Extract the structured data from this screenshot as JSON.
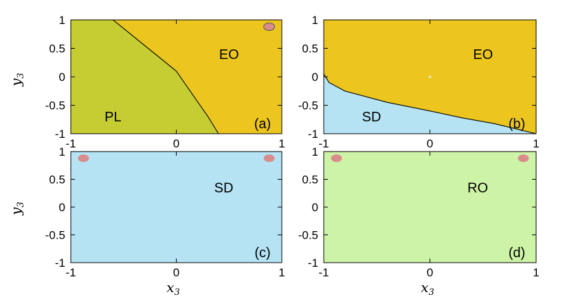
{
  "colors": {
    "PL": "#c6cd33",
    "EO": "#ecc61f",
    "SD": "#b5e3f4",
    "RO": "#cdf3a6",
    "marker": "#d98c8c",
    "boundary": "#000000"
  },
  "chart_data": [
    {
      "type": "region-map",
      "panel_label": "(a)",
      "xlim": [
        -1,
        1
      ],
      "ylim": [
        -1,
        1
      ],
      "xticks": [
        -1,
        0,
        1
      ],
      "yticks": [
        1,
        0.5,
        0,
        -0.5,
        -1
      ],
      "regions": [
        {
          "name": "PL",
          "label_at": [
            -0.6,
            -0.7
          ],
          "fill": "PL",
          "polygon": [
            [
              -1,
              1
            ],
            [
              -0.6,
              1
            ],
            [
              -0.5,
              0.85
            ],
            [
              -0.3,
              0.55
            ],
            [
              0,
              0.1
            ],
            [
              0.15,
              -0.3
            ],
            [
              0.3,
              -0.7
            ],
            [
              0.4,
              -1
            ],
            [
              -1,
              -1
            ]
          ]
        },
        {
          "name": "EO",
          "label_at": [
            0.5,
            0.4
          ],
          "fill": "EO",
          "polygon": [
            [
              -0.6,
              1
            ],
            [
              1,
              1
            ],
            [
              1,
              -1
            ],
            [
              0.4,
              -1
            ],
            [
              0.3,
              -0.7
            ],
            [
              0.15,
              -0.3
            ],
            [
              0,
              0.1
            ],
            [
              -0.3,
              0.55
            ],
            [
              -0.5,
              0.85
            ]
          ]
        }
      ],
      "boundary": [
        [
          -0.6,
          1
        ],
        [
          -0.5,
          0.85
        ],
        [
          -0.3,
          0.55
        ],
        [
          0,
          0.1
        ],
        [
          0.15,
          -0.3
        ],
        [
          0.3,
          -0.7
        ],
        [
          0.4,
          -1
        ]
      ],
      "markers": [
        {
          "x": 0.88,
          "y": 0.88,
          "outlined": true
        }
      ]
    },
    {
      "type": "region-map",
      "panel_label": "(b)",
      "xlim": [
        -1,
        1
      ],
      "ylim": [
        -1,
        1
      ],
      "xticks": [
        -1,
        0,
        1
      ],
      "yticks": [
        1,
        0.5,
        0,
        -0.5,
        -1
      ],
      "regions": [
        {
          "name": "EO",
          "label_at": [
            0.5,
            0.4
          ],
          "fill": "EO",
          "polygon": [
            [
              -1,
              1
            ],
            [
              1,
              1
            ],
            [
              1,
              -1
            ],
            [
              0.6,
              -0.82
            ],
            [
              0.3,
              -0.72
            ],
            [
              0,
              -0.6
            ],
            [
              -0.4,
              -0.45
            ],
            [
              -0.8,
              -0.25
            ],
            [
              -0.95,
              -0.1
            ],
            [
              -1,
              0.05
            ]
          ]
        },
        {
          "name": "SD",
          "label_at": [
            -0.55,
            -0.7
          ],
          "fill": "SD",
          "polygon": [
            [
              -1,
              0.05
            ],
            [
              -0.95,
              -0.1
            ],
            [
              -0.8,
              -0.25
            ],
            [
              -0.4,
              -0.45
            ],
            [
              0,
              -0.6
            ],
            [
              0.3,
              -0.72
            ],
            [
              0.6,
              -0.82
            ],
            [
              1,
              -1
            ],
            [
              -1,
              -1
            ]
          ]
        }
      ],
      "boundary": [
        [
          -1,
          0.05
        ],
        [
          -0.95,
          -0.1
        ],
        [
          -0.8,
          -0.25
        ],
        [
          -0.4,
          -0.45
        ],
        [
          0,
          -0.6
        ],
        [
          0.3,
          -0.72
        ],
        [
          0.6,
          -0.82
        ],
        [
          1,
          -1
        ]
      ],
      "markers": [
        {
          "x": 0.0,
          "y": 0.0,
          "small": true
        }
      ]
    },
    {
      "type": "region-map",
      "panel_label": "(c)",
      "xlim": [
        -1,
        1
      ],
      "ylim": [
        -1,
        1
      ],
      "xticks": [
        -1,
        0,
        1
      ],
      "yticks": [
        1,
        0.5,
        0,
        -0.5,
        -1
      ],
      "regions": [
        {
          "name": "SD",
          "label_at": [
            0.45,
            0.35
          ],
          "fill": "SD",
          "polygon": [
            [
              -1,
              1
            ],
            [
              1,
              1
            ],
            [
              1,
              -1
            ],
            [
              -1,
              -1
            ]
          ]
        }
      ],
      "boundary": [],
      "markers": [
        {
          "x": -0.88,
          "y": 0.88
        },
        {
          "x": 0.88,
          "y": 0.88
        }
      ]
    },
    {
      "type": "region-map",
      "panel_label": "(d)",
      "xlim": [
        -1,
        1
      ],
      "ylim": [
        -1,
        1
      ],
      "xticks": [
        -1,
        0,
        1
      ],
      "yticks": [
        1,
        0.5,
        0,
        -0.5,
        -1
      ],
      "regions": [
        {
          "name": "RO",
          "label_at": [
            0.45,
            0.35
          ],
          "fill": "RO",
          "polygon": [
            [
              -1,
              1
            ],
            [
              1,
              1
            ],
            [
              1,
              -1
            ],
            [
              -1,
              -1
            ]
          ]
        }
      ],
      "boundary": [],
      "markers": [
        {
          "x": -0.88,
          "y": 0.88
        },
        {
          "x": 0.88,
          "y": 0.88
        }
      ]
    }
  ],
  "axes": {
    "xlabel_var": "x",
    "xlabel_sub": "3",
    "ylabel_var": "y",
    "ylabel_sub": "3"
  }
}
